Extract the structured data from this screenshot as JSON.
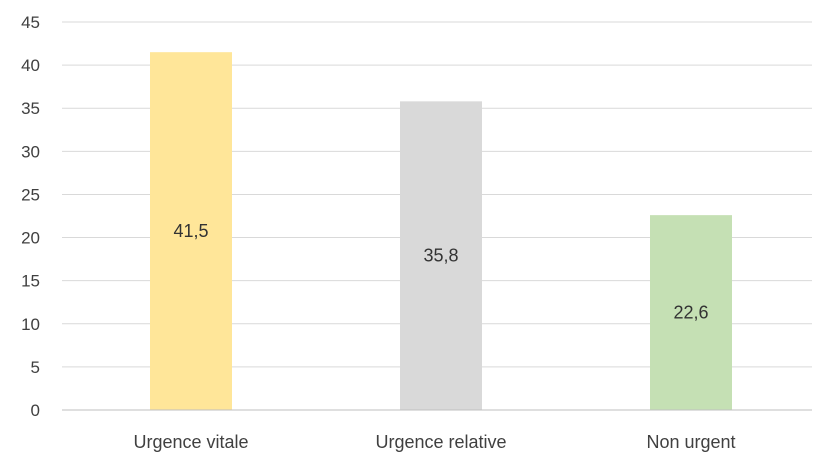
{
  "chart_data": {
    "type": "bar",
    "categories": [
      "Urgence vitale",
      "Urgence relative",
      "Non urgent"
    ],
    "values": [
      41.5,
      35.8,
      22.6
    ],
    "data_labels": [
      "41,5",
      "35,8",
      "22,6"
    ],
    "colors": [
      "#FFE699",
      "#D9D9D9",
      "#C5E0B4"
    ],
    "title": "",
    "xlabel": "",
    "ylabel": "",
    "ylim": [
      0,
      45
    ],
    "yticks": [
      0,
      5,
      10,
      15,
      20,
      25,
      30,
      35,
      40,
      45
    ],
    "ytick_labels": [
      "0",
      "5",
      "10",
      "15",
      "20",
      "25",
      "30",
      "35",
      "40",
      "45"
    ],
    "grid": true,
    "legend": "none"
  }
}
